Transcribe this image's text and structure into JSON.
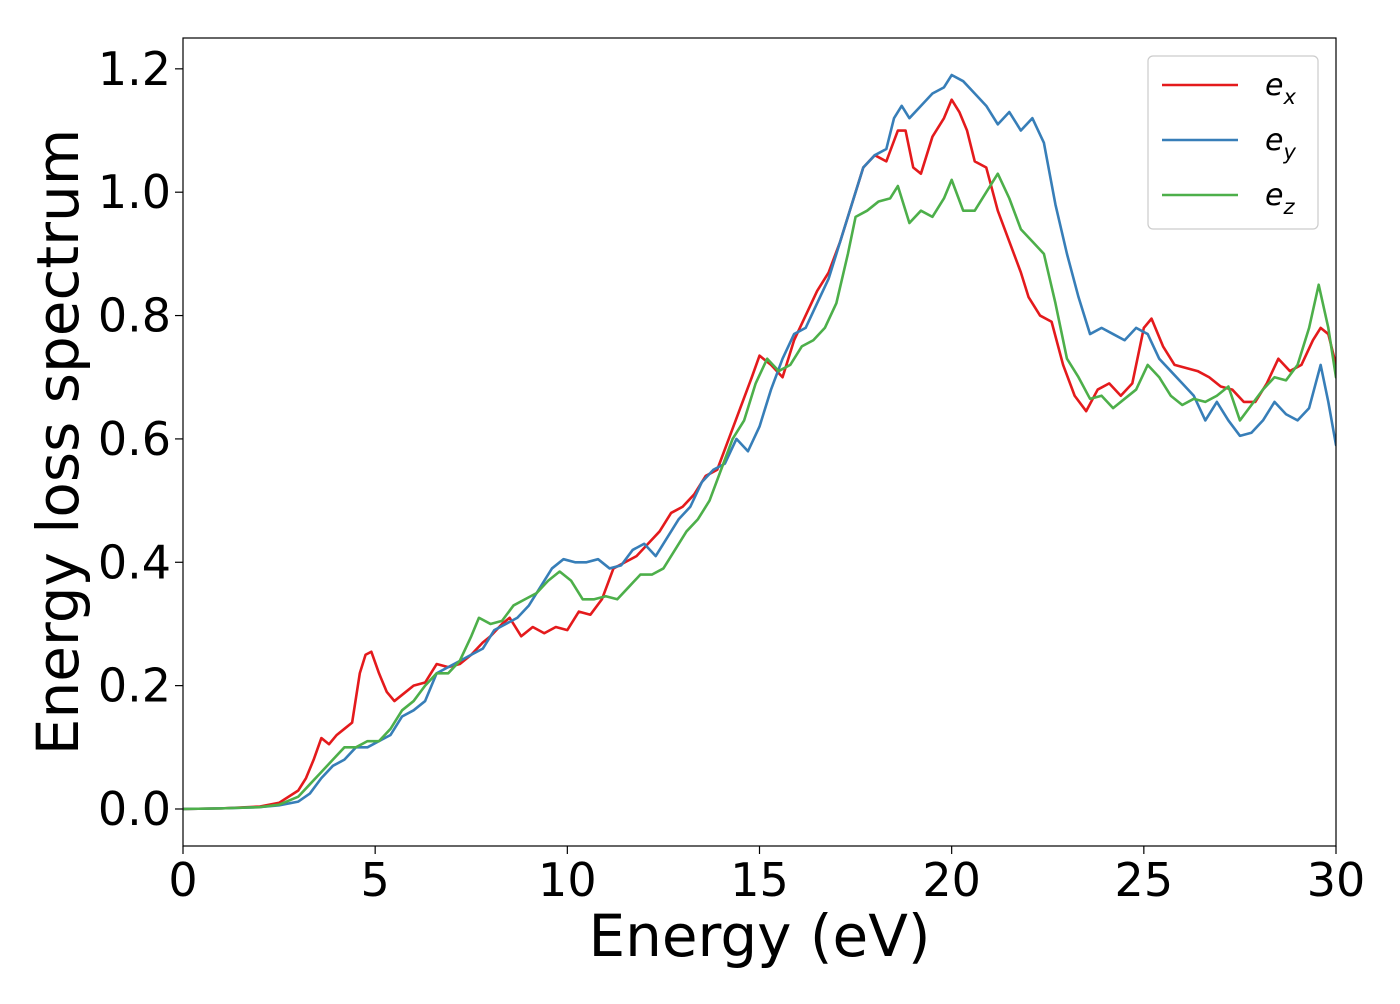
{
  "chart_data": {
    "type": "line",
    "title": "",
    "xlabel": "Energy (eV)",
    "ylabel": "Energy loss spectrum",
    "xlim": [
      0,
      30
    ],
    "ylim": [
      -0.06,
      1.25
    ],
    "xticks": [
      0,
      5,
      10,
      15,
      20,
      25,
      30
    ],
    "yticks": [
      0.0,
      0.2,
      0.4,
      0.6,
      0.8,
      1.0,
      1.2
    ],
    "xtick_labels": [
      "0",
      "5",
      "10",
      "15",
      "20",
      "25",
      "30"
    ],
    "ytick_labels": [
      "0.0",
      "0.2",
      "0.4",
      "0.6",
      "0.8",
      "1.0",
      "1.2"
    ],
    "grid": false,
    "legend_position": "top-right",
    "series": [
      {
        "name": "e_x",
        "label_base": "e",
        "label_sub": "x",
        "color": "#e41a1c",
        "points": [
          [
            0,
            0
          ],
          [
            1,
            0.001
          ],
          [
            2,
            0.004
          ],
          [
            2.5,
            0.01
          ],
          [
            3,
            0.03
          ],
          [
            3.2,
            0.05
          ],
          [
            3.4,
            0.08
          ],
          [
            3.6,
            0.115
          ],
          [
            3.8,
            0.105
          ],
          [
            4.0,
            0.12
          ],
          [
            4.2,
            0.13
          ],
          [
            4.4,
            0.14
          ],
          [
            4.6,
            0.22
          ],
          [
            4.75,
            0.25
          ],
          [
            4.9,
            0.255
          ],
          [
            5.1,
            0.22
          ],
          [
            5.3,
            0.19
          ],
          [
            5.5,
            0.175
          ],
          [
            5.8,
            0.19
          ],
          [
            6.0,
            0.2
          ],
          [
            6.3,
            0.205
          ],
          [
            6.6,
            0.235
          ],
          [
            6.9,
            0.23
          ],
          [
            7.2,
            0.235
          ],
          [
            7.5,
            0.25
          ],
          [
            7.8,
            0.27
          ],
          [
            8.0,
            0.28
          ],
          [
            8.3,
            0.3
          ],
          [
            8.5,
            0.31
          ],
          [
            8.8,
            0.28
          ],
          [
            9.1,
            0.295
          ],
          [
            9.4,
            0.285
          ],
          [
            9.7,
            0.295
          ],
          [
            10.0,
            0.29
          ],
          [
            10.3,
            0.32
          ],
          [
            10.6,
            0.315
          ],
          [
            10.9,
            0.34
          ],
          [
            11.2,
            0.39
          ],
          [
            11.5,
            0.4
          ],
          [
            11.8,
            0.41
          ],
          [
            12.1,
            0.43
          ],
          [
            12.4,
            0.45
          ],
          [
            12.7,
            0.48
          ],
          [
            13.0,
            0.49
          ],
          [
            13.3,
            0.51
          ],
          [
            13.6,
            0.54
          ],
          [
            13.9,
            0.55
          ],
          [
            14.2,
            0.6
          ],
          [
            14.5,
            0.65
          ],
          [
            14.8,
            0.7
          ],
          [
            15.0,
            0.735
          ],
          [
            15.3,
            0.72
          ],
          [
            15.6,
            0.7
          ],
          [
            15.9,
            0.76
          ],
          [
            16.2,
            0.8
          ],
          [
            16.5,
            0.84
          ],
          [
            16.8,
            0.87
          ],
          [
            17.1,
            0.92
          ],
          [
            17.4,
            0.98
          ],
          [
            17.7,
            1.04
          ],
          [
            18.0,
            1.06
          ],
          [
            18.3,
            1.05
          ],
          [
            18.6,
            1.1
          ],
          [
            18.8,
            1.1
          ],
          [
            19.0,
            1.04
          ],
          [
            19.2,
            1.03
          ],
          [
            19.5,
            1.09
          ],
          [
            19.8,
            1.12
          ],
          [
            20.0,
            1.15
          ],
          [
            20.2,
            1.13
          ],
          [
            20.4,
            1.1
          ],
          [
            20.6,
            1.05
          ],
          [
            20.9,
            1.04
          ],
          [
            21.2,
            0.97
          ],
          [
            21.5,
            0.92
          ],
          [
            21.8,
            0.87
          ],
          [
            22.0,
            0.83
          ],
          [
            22.3,
            0.8
          ],
          [
            22.6,
            0.79
          ],
          [
            22.9,
            0.72
          ],
          [
            23.2,
            0.67
          ],
          [
            23.5,
            0.645
          ],
          [
            23.8,
            0.68
          ],
          [
            24.1,
            0.69
          ],
          [
            24.4,
            0.67
          ],
          [
            24.7,
            0.69
          ],
          [
            25.0,
            0.78
          ],
          [
            25.2,
            0.795
          ],
          [
            25.5,
            0.75
          ],
          [
            25.8,
            0.72
          ],
          [
            26.1,
            0.715
          ],
          [
            26.4,
            0.71
          ],
          [
            26.7,
            0.7
          ],
          [
            27.0,
            0.685
          ],
          [
            27.3,
            0.68
          ],
          [
            27.6,
            0.66
          ],
          [
            27.9,
            0.66
          ],
          [
            28.2,
            0.69
          ],
          [
            28.5,
            0.73
          ],
          [
            28.8,
            0.71
          ],
          [
            29.1,
            0.72
          ],
          [
            29.4,
            0.76
          ],
          [
            29.6,
            0.78
          ],
          [
            29.8,
            0.77
          ],
          [
            30.0,
            0.72
          ]
        ]
      },
      {
        "name": "e_y",
        "label_base": "e",
        "label_sub": "y",
        "color": "#377eb8",
        "points": [
          [
            0,
            0
          ],
          [
            1,
            0.001
          ],
          [
            2,
            0.003
          ],
          [
            2.5,
            0.006
          ],
          [
            3,
            0.012
          ],
          [
            3.3,
            0.025
          ],
          [
            3.6,
            0.05
          ],
          [
            3.9,
            0.07
          ],
          [
            4.2,
            0.08
          ],
          [
            4.5,
            0.1
          ],
          [
            4.8,
            0.1
          ],
          [
            5.1,
            0.11
          ],
          [
            5.4,
            0.12
          ],
          [
            5.7,
            0.15
          ],
          [
            6.0,
            0.16
          ],
          [
            6.3,
            0.175
          ],
          [
            6.6,
            0.22
          ],
          [
            6.9,
            0.23
          ],
          [
            7.2,
            0.24
          ],
          [
            7.5,
            0.25
          ],
          [
            7.8,
            0.26
          ],
          [
            8.1,
            0.29
          ],
          [
            8.4,
            0.3
          ],
          [
            8.7,
            0.31
          ],
          [
            9.0,
            0.33
          ],
          [
            9.3,
            0.36
          ],
          [
            9.6,
            0.39
          ],
          [
            9.9,
            0.405
          ],
          [
            10.2,
            0.4
          ],
          [
            10.5,
            0.4
          ],
          [
            10.8,
            0.405
          ],
          [
            11.1,
            0.39
          ],
          [
            11.4,
            0.395
          ],
          [
            11.7,
            0.42
          ],
          [
            12.0,
            0.43
          ],
          [
            12.3,
            0.41
          ],
          [
            12.6,
            0.44
          ],
          [
            12.9,
            0.47
          ],
          [
            13.2,
            0.49
          ],
          [
            13.5,
            0.53
          ],
          [
            13.8,
            0.55
          ],
          [
            14.1,
            0.56
          ],
          [
            14.4,
            0.6
          ],
          [
            14.7,
            0.58
          ],
          [
            15.0,
            0.62
          ],
          [
            15.3,
            0.68
          ],
          [
            15.6,
            0.73
          ],
          [
            15.9,
            0.77
          ],
          [
            16.2,
            0.78
          ],
          [
            16.5,
            0.82
          ],
          [
            16.8,
            0.86
          ],
          [
            17.1,
            0.92
          ],
          [
            17.4,
            0.98
          ],
          [
            17.7,
            1.04
          ],
          [
            18.0,
            1.06
          ],
          [
            18.3,
            1.07
          ],
          [
            18.5,
            1.12
          ],
          [
            18.7,
            1.14
          ],
          [
            18.9,
            1.12
          ],
          [
            19.2,
            1.14
          ],
          [
            19.5,
            1.16
          ],
          [
            19.8,
            1.17
          ],
          [
            20.0,
            1.19
          ],
          [
            20.3,
            1.18
          ],
          [
            20.6,
            1.16
          ],
          [
            20.9,
            1.14
          ],
          [
            21.2,
            1.11
          ],
          [
            21.5,
            1.13
          ],
          [
            21.8,
            1.1
          ],
          [
            22.1,
            1.12
          ],
          [
            22.4,
            1.08
          ],
          [
            22.7,
            0.98
          ],
          [
            23.0,
            0.9
          ],
          [
            23.3,
            0.83
          ],
          [
            23.6,
            0.77
          ],
          [
            23.9,
            0.78
          ],
          [
            24.2,
            0.77
          ],
          [
            24.5,
            0.76
          ],
          [
            24.8,
            0.78
          ],
          [
            25.1,
            0.77
          ],
          [
            25.4,
            0.73
          ],
          [
            25.7,
            0.71
          ],
          [
            26.0,
            0.69
          ],
          [
            26.3,
            0.67
          ],
          [
            26.6,
            0.63
          ],
          [
            26.9,
            0.66
          ],
          [
            27.2,
            0.63
          ],
          [
            27.5,
            0.605
          ],
          [
            27.8,
            0.61
          ],
          [
            28.1,
            0.63
          ],
          [
            28.4,
            0.66
          ],
          [
            28.7,
            0.64
          ],
          [
            29.0,
            0.63
          ],
          [
            29.3,
            0.65
          ],
          [
            29.6,
            0.72
          ],
          [
            29.8,
            0.66
          ],
          [
            30.0,
            0.59
          ]
        ]
      },
      {
        "name": "e_z",
        "label_base": "e",
        "label_sub": "z",
        "color": "#4daf4a",
        "points": [
          [
            0,
            0
          ],
          [
            1,
            0.001
          ],
          [
            2,
            0.003
          ],
          [
            2.5,
            0.007
          ],
          [
            3,
            0.02
          ],
          [
            3.3,
            0.04
          ],
          [
            3.6,
            0.06
          ],
          [
            3.9,
            0.08
          ],
          [
            4.2,
            0.1
          ],
          [
            4.5,
            0.1
          ],
          [
            4.8,
            0.11
          ],
          [
            5.1,
            0.11
          ],
          [
            5.4,
            0.13
          ],
          [
            5.7,
            0.16
          ],
          [
            6.0,
            0.175
          ],
          [
            6.3,
            0.2
          ],
          [
            6.6,
            0.22
          ],
          [
            6.9,
            0.22
          ],
          [
            7.2,
            0.24
          ],
          [
            7.5,
            0.28
          ],
          [
            7.7,
            0.31
          ],
          [
            8.0,
            0.3
          ],
          [
            8.3,
            0.305
          ],
          [
            8.6,
            0.33
          ],
          [
            8.9,
            0.34
          ],
          [
            9.2,
            0.35
          ],
          [
            9.5,
            0.37
          ],
          [
            9.8,
            0.385
          ],
          [
            10.1,
            0.37
          ],
          [
            10.4,
            0.34
          ],
          [
            10.7,
            0.34
          ],
          [
            11.0,
            0.345
          ],
          [
            11.3,
            0.34
          ],
          [
            11.6,
            0.36
          ],
          [
            11.9,
            0.38
          ],
          [
            12.2,
            0.38
          ],
          [
            12.5,
            0.39
          ],
          [
            12.8,
            0.42
          ],
          [
            13.1,
            0.45
          ],
          [
            13.4,
            0.47
          ],
          [
            13.7,
            0.5
          ],
          [
            14.0,
            0.55
          ],
          [
            14.3,
            0.6
          ],
          [
            14.6,
            0.63
          ],
          [
            14.9,
            0.69
          ],
          [
            15.2,
            0.73
          ],
          [
            15.5,
            0.71
          ],
          [
            15.8,
            0.72
          ],
          [
            16.1,
            0.75
          ],
          [
            16.4,
            0.76
          ],
          [
            16.7,
            0.78
          ],
          [
            17.0,
            0.82
          ],
          [
            17.3,
            0.9
          ],
          [
            17.5,
            0.96
          ],
          [
            17.8,
            0.97
          ],
          [
            18.1,
            0.985
          ],
          [
            18.4,
            0.99
          ],
          [
            18.6,
            1.01
          ],
          [
            18.9,
            0.95
          ],
          [
            19.2,
            0.97
          ],
          [
            19.5,
            0.96
          ],
          [
            19.8,
            0.99
          ],
          [
            20.0,
            1.02
          ],
          [
            20.3,
            0.97
          ],
          [
            20.6,
            0.97
          ],
          [
            20.9,
            1.0
          ],
          [
            21.2,
            1.03
          ],
          [
            21.5,
            0.99
          ],
          [
            21.8,
            0.94
          ],
          [
            22.1,
            0.92
          ],
          [
            22.4,
            0.9
          ],
          [
            22.7,
            0.82
          ],
          [
            23.0,
            0.73
          ],
          [
            23.3,
            0.7
          ],
          [
            23.6,
            0.665
          ],
          [
            23.9,
            0.67
          ],
          [
            24.2,
            0.65
          ],
          [
            24.5,
            0.665
          ],
          [
            24.8,
            0.68
          ],
          [
            25.1,
            0.72
          ],
          [
            25.4,
            0.7
          ],
          [
            25.7,
            0.67
          ],
          [
            26.0,
            0.655
          ],
          [
            26.3,
            0.665
          ],
          [
            26.6,
            0.66
          ],
          [
            26.9,
            0.67
          ],
          [
            27.2,
            0.685
          ],
          [
            27.5,
            0.63
          ],
          [
            27.8,
            0.655
          ],
          [
            28.1,
            0.68
          ],
          [
            28.4,
            0.7
          ],
          [
            28.7,
            0.695
          ],
          [
            29.0,
            0.72
          ],
          [
            29.3,
            0.78
          ],
          [
            29.55,
            0.85
          ],
          [
            29.8,
            0.78
          ],
          [
            30.0,
            0.7
          ]
        ]
      }
    ]
  }
}
